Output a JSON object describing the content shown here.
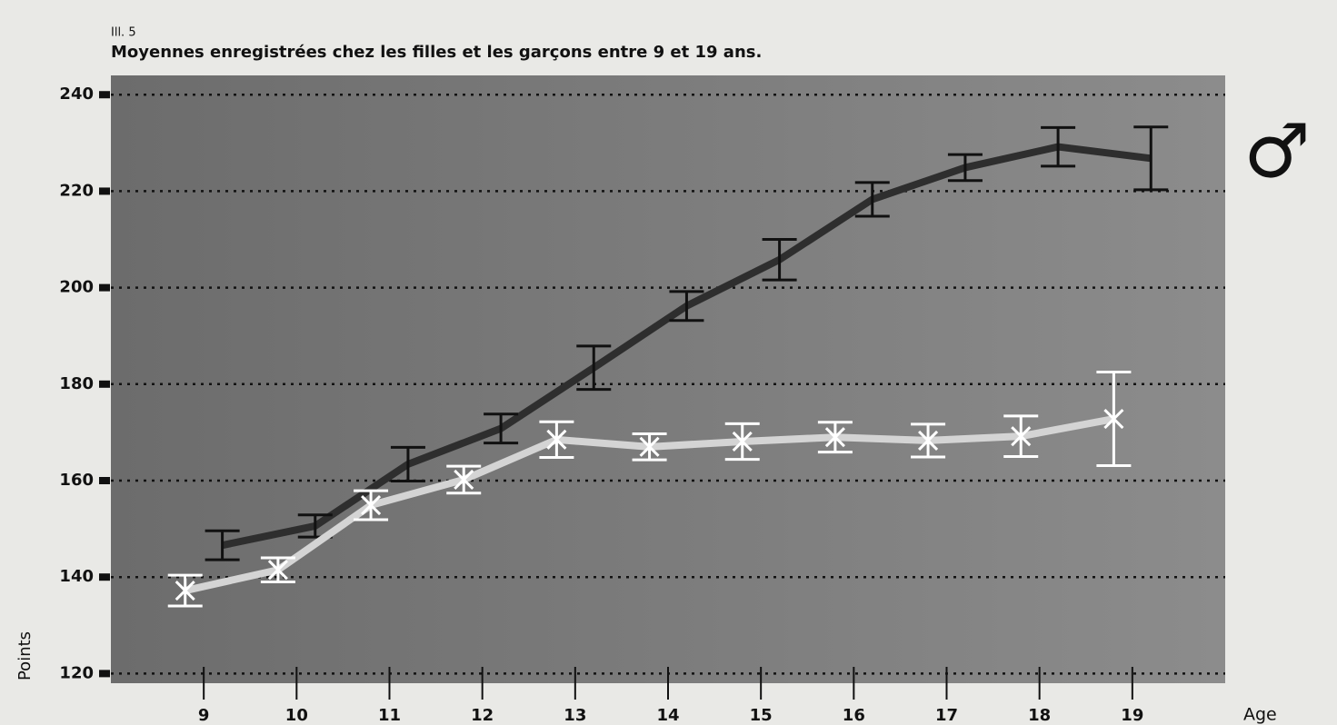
{
  "chart_data": {
    "type": "line",
    "label": "Ill. 5",
    "title": "Moyennes enregistrées chez les filles et les garçons entre 9 et 19 ans.",
    "y_label": "Points",
    "x_label": "Age",
    "xlim": [
      8,
      20
    ],
    "xticks": [
      9,
      10,
      11,
      12,
      13,
      14,
      15,
      16,
      17,
      18,
      19
    ],
    "ylim": [
      118,
      244
    ],
    "yticks": [
      120,
      140,
      160,
      180,
      200,
      220,
      240
    ],
    "grid": true,
    "series": [
      {
        "name": "♂",
        "color": "#2e2e2e",
        "bar_color": "#111111",
        "x": [
          9.2,
          10.2,
          11.2,
          12.2,
          13.2,
          14.2,
          15.2,
          16.2,
          17.2,
          18.2,
          19.2
        ],
        "values": [
          146.6,
          150.6,
          163.4,
          170.8,
          183.4,
          196.2,
          205.8,
          218.3,
          224.9,
          229.2,
          226.8
        ],
        "errors": [
          3,
          2.3,
          3.5,
          3,
          4.5,
          3,
          4.2,
          3.5,
          2.7,
          4,
          6.5
        ]
      },
      {
        "color": "#d4d4d4",
        "bar_color": "#ffffff",
        "x": [
          8.8,
          9.8,
          10.8,
          11.8,
          12.8,
          13.8,
          14.8,
          15.8,
          16.8,
          17.8,
          18.8
        ],
        "values": [
          137.2,
          141.5,
          154.9,
          160.2,
          168.5,
          167,
          168.1,
          169,
          168.3,
          169.2,
          172.8
        ],
        "errors": [
          3.2,
          2.5,
          3,
          2.8,
          3.7,
          2.7,
          3.7,
          3.1,
          3.4,
          4.2,
          9.7
        ]
      }
    ]
  }
}
